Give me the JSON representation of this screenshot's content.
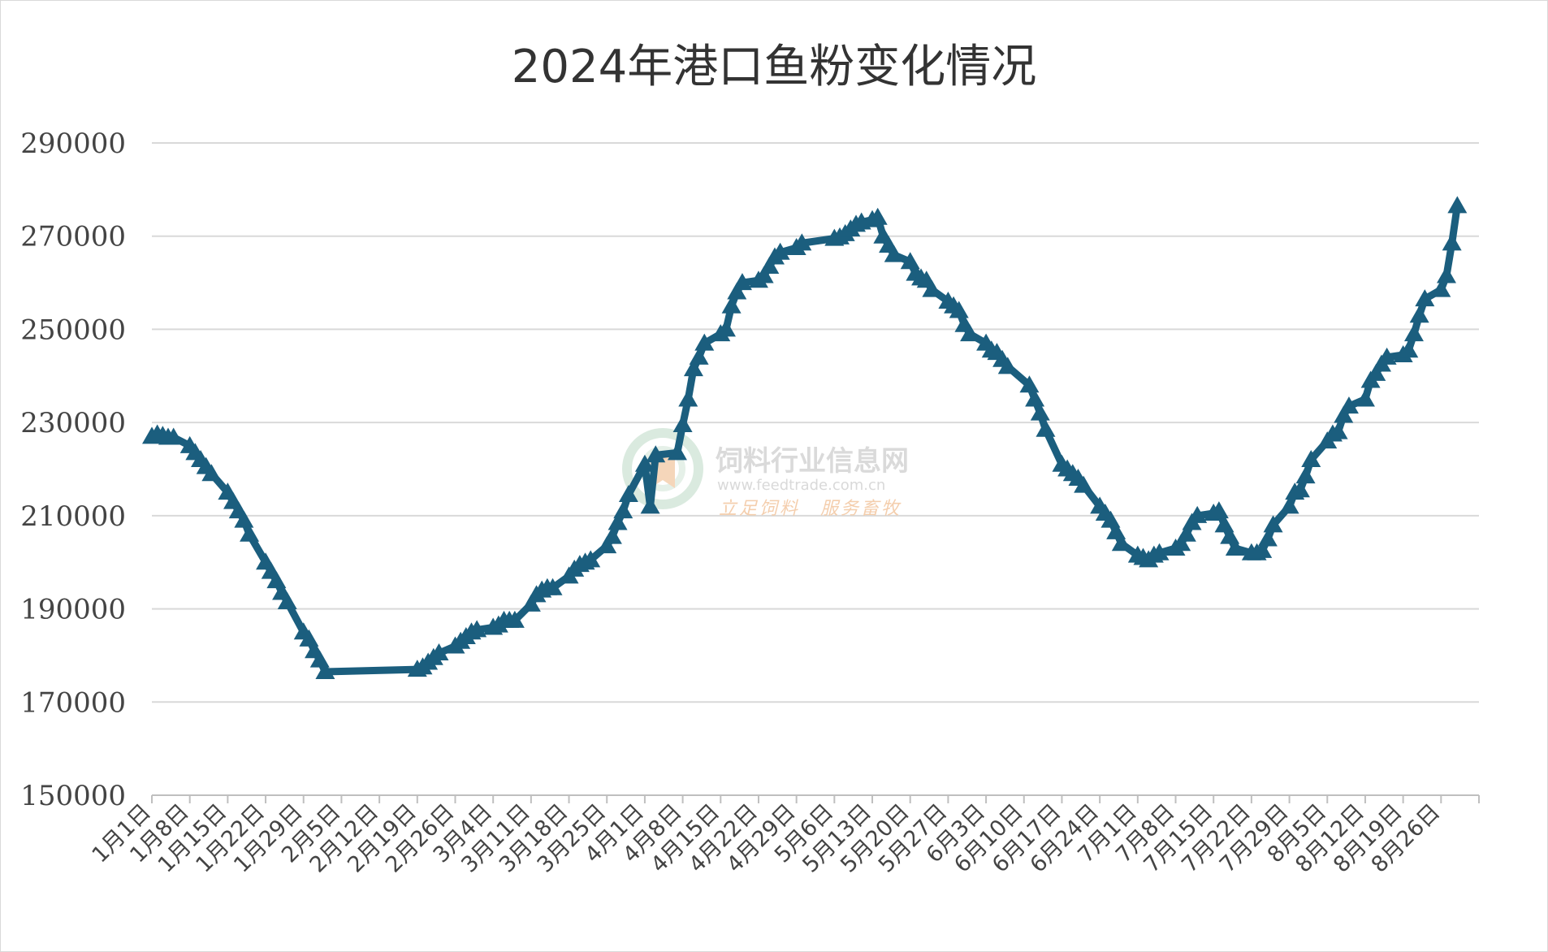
{
  "chart_data": {
    "type": "line",
    "title": "2024年港口鱼粉变化情况",
    "xlabel": "",
    "ylabel": "",
    "ylim": [
      150000,
      290000
    ],
    "yticks": [
      "150000",
      "170000",
      "190000",
      "210000",
      "230000",
      "250000",
      "270000",
      "290000"
    ],
    "xticks": [
      "1月1日",
      "1月8日",
      "1月15日",
      "1月22日",
      "1月29日",
      "2月5日",
      "2月12日",
      "2月19日",
      "2月26日",
      "3月4日",
      "3月11日",
      "3月18日",
      "3月25日",
      "4月1日",
      "4月8日",
      "4月15日",
      "4月22日",
      "4月29日",
      "5月6日",
      "5月13日",
      "5月20日",
      "5月27日",
      "6月3日",
      "6月10日",
      "6月17日",
      "6月24日",
      "7月1日",
      "7月8日",
      "7月15日",
      "7月22日",
      "7月29日",
      "8月5日",
      "8月12日",
      "8月19日",
      "8月26日"
    ],
    "grid": true,
    "legend": "none",
    "color": "#1b5e7e",
    "marker": "triangle",
    "series": [
      {
        "points": [
          [
            "1月1日",
            227000
          ],
          [
            "1月2日",
            227500
          ],
          [
            "1月3日",
            227200
          ],
          [
            "1月4日",
            226800
          ],
          [
            "1月5日",
            226800
          ],
          [
            "1月8日",
            225000
          ],
          [
            "1月9日",
            223500
          ],
          [
            "1月10日",
            222000
          ],
          [
            "1月11日",
            220500
          ],
          [
            "1月12日",
            219000
          ],
          [
            "1月15日",
            215000
          ],
          [
            "1月16日",
            213000
          ],
          [
            "1月17日",
            211000
          ],
          [
            "1月18日",
            209000
          ],
          [
            "1月19日",
            206000
          ],
          [
            "1月22日",
            200000
          ],
          [
            "1月23日",
            198000
          ],
          [
            "1月24日",
            196000
          ],
          [
            "1月25日",
            193500
          ],
          [
            "1月26日",
            191500
          ],
          [
            "1月29日",
            185000
          ],
          [
            "1月30日",
            183500
          ],
          [
            "1月31日",
            181000
          ],
          [
            "2月1日",
            179000
          ],
          [
            "2月2日",
            176500
          ],
          [
            "2月19日",
            177000
          ],
          [
            "2月20日",
            177500
          ],
          [
            "2月21日",
            178500
          ],
          [
            "2月22日",
            179500
          ],
          [
            "2月23日",
            180500
          ],
          [
            "2月26日",
            182000
          ],
          [
            "2月27日",
            183000
          ],
          [
            "2月28日",
            184000
          ],
          [
            "2月29日",
            185000
          ],
          [
            "3月1日",
            185500
          ],
          [
            "3月4日",
            186000
          ],
          [
            "3月5日",
            186500
          ],
          [
            "3月6日",
            187500
          ],
          [
            "3月7日",
            187500
          ],
          [
            "3月8日",
            187500
          ],
          [
            "3月11日",
            191000
          ],
          [
            "3月12日",
            193000
          ],
          [
            "3月13日",
            194000
          ],
          [
            "3月14日",
            194500
          ],
          [
            "3月15日",
            194500
          ],
          [
            "3月18日",
            197000
          ],
          [
            "3月19日",
            198500
          ],
          [
            "3月20日",
            199500
          ],
          [
            "3月21日",
            200000
          ],
          [
            "3月22日",
            200500
          ],
          [
            "3月25日",
            203500
          ],
          [
            "3月26日",
            205500
          ],
          [
            "3月27日",
            208500
          ],
          [
            "3月28日",
            211000
          ],
          [
            "3月29日",
            214500
          ],
          [
            "4月1日",
            221000
          ],
          [
            "4月2日",
            212000
          ],
          [
            "4月3日",
            223000
          ],
          [
            "4月7日",
            223500
          ],
          [
            "4月8日",
            229500
          ],
          [
            "4月9日",
            235000
          ],
          [
            "4月10日",
            241500
          ],
          [
            "4月11日",
            244000
          ],
          [
            "4月12日",
            247000
          ],
          [
            "4月15日",
            249000
          ],
          [
            "4月16日",
            250000
          ],
          [
            "4月17日",
            255000
          ],
          [
            "4月18日",
            258000
          ],
          [
            "4月19日",
            260000
          ],
          [
            "4月22日",
            260500
          ],
          [
            "4月23日",
            261500
          ],
          [
            "4月24日",
            263500
          ],
          [
            "4月25日",
            265500
          ],
          [
            "4月26日",
            266500
          ],
          [
            "4月29日",
            267500
          ],
          [
            "4月30日",
            268500
          ],
          [
            "5月6日",
            269500
          ],
          [
            "5月7日",
            269800
          ],
          [
            "5月8日",
            270500
          ],
          [
            "5月9日",
            271500
          ],
          [
            "5月10日",
            272500
          ],
          [
            "5月11日",
            273000
          ],
          [
            "5月13日",
            273500
          ],
          [
            "5月14日",
            274000
          ],
          [
            "5月15日",
            270000
          ],
          [
            "5月16日",
            268000
          ],
          [
            "5月17日",
            266000
          ],
          [
            "5月20日",
            264500
          ],
          [
            "5月21日",
            262000
          ],
          [
            "5月22日",
            261000
          ],
          [
            "5月23日",
            260500
          ],
          [
            "5月24日",
            258500
          ],
          [
            "5月27日",
            256000
          ],
          [
            "5月28日",
            255000
          ],
          [
            "5月29日",
            254000
          ],
          [
            "5月30日",
            251000
          ],
          [
            "5月31日",
            249000
          ],
          [
            "6月3日",
            247000
          ],
          [
            "6月4日",
            245500
          ],
          [
            "6月5日",
            245000
          ],
          [
            "6月6日",
            243500
          ],
          [
            "6月7日",
            242000
          ],
          [
            "6月11日",
            238000
          ],
          [
            "6月12日",
            235000
          ],
          [
            "6月13日",
            232000
          ],
          [
            "6月14日",
            228500
          ],
          [
            "6月17日",
            221000
          ],
          [
            "6月18日",
            220000
          ],
          [
            "6月19日",
            219000
          ],
          [
            "6月20日",
            218000
          ],
          [
            "6月21日",
            216500
          ],
          [
            "6月24日",
            212000
          ],
          [
            "6月25日",
            210500
          ],
          [
            "6月26日",
            209000
          ],
          [
            "6月27日",
            206500
          ],
          [
            "6月28日",
            204000
          ],
          [
            "7月1日",
            201500
          ],
          [
            "7月2日",
            201000
          ],
          [
            "7月3日",
            200500
          ],
          [
            "7月4日",
            201500
          ],
          [
            "7月5日",
            202000
          ],
          [
            "7月8日",
            203000
          ],
          [
            "7月9日",
            204000
          ],
          [
            "7月10日",
            206000
          ],
          [
            "7月11日",
            208500
          ],
          [
            "7月12日",
            210000
          ],
          [
            "7月15日",
            210500
          ],
          [
            "7月16日",
            211000
          ],
          [
            "7月17日",
            208000
          ],
          [
            "7月18日",
            205500
          ],
          [
            "7月19日",
            203000
          ],
          [
            "7月22日",
            202000
          ],
          [
            "7月23日",
            202000
          ],
          [
            "7月24日",
            202500
          ],
          [
            "7月25日",
            205000
          ],
          [
            "7月26日",
            208000
          ],
          [
            "7月29日",
            212000
          ],
          [
            "7月30日",
            215000
          ],
          [
            "7月31日",
            215500
          ],
          [
            "8月1日",
            218500
          ],
          [
            "8月2日",
            222000
          ],
          [
            "8月5日",
            226000
          ],
          [
            "8月6日",
            227500
          ],
          [
            "8月7日",
            228000
          ],
          [
            "8月8日",
            231500
          ],
          [
            "8月9日",
            233500
          ],
          [
            "8月12日",
            235000
          ],
          [
            "8月13日",
            239000
          ],
          [
            "8月14日",
            240500
          ],
          [
            "8月15日",
            242500
          ],
          [
            "8月16日",
            244000
          ],
          [
            "8月19日",
            244500
          ],
          [
            "8月20日",
            245500
          ],
          [
            "8月21日",
            249000
          ],
          [
            "8月22日",
            253000
          ],
          [
            "8月23日",
            256500
          ],
          [
            "8月26日",
            258500
          ],
          [
            "8月27日",
            261500
          ],
          [
            "8月28日",
            268500
          ],
          [
            "8月29日",
            276500
          ]
        ]
      }
    ]
  },
  "watermark": {
    "title": "饲料行业信息网",
    "url": "www.feedtrade.com.cn",
    "slogan": "立足饲料　服务畜牧"
  }
}
